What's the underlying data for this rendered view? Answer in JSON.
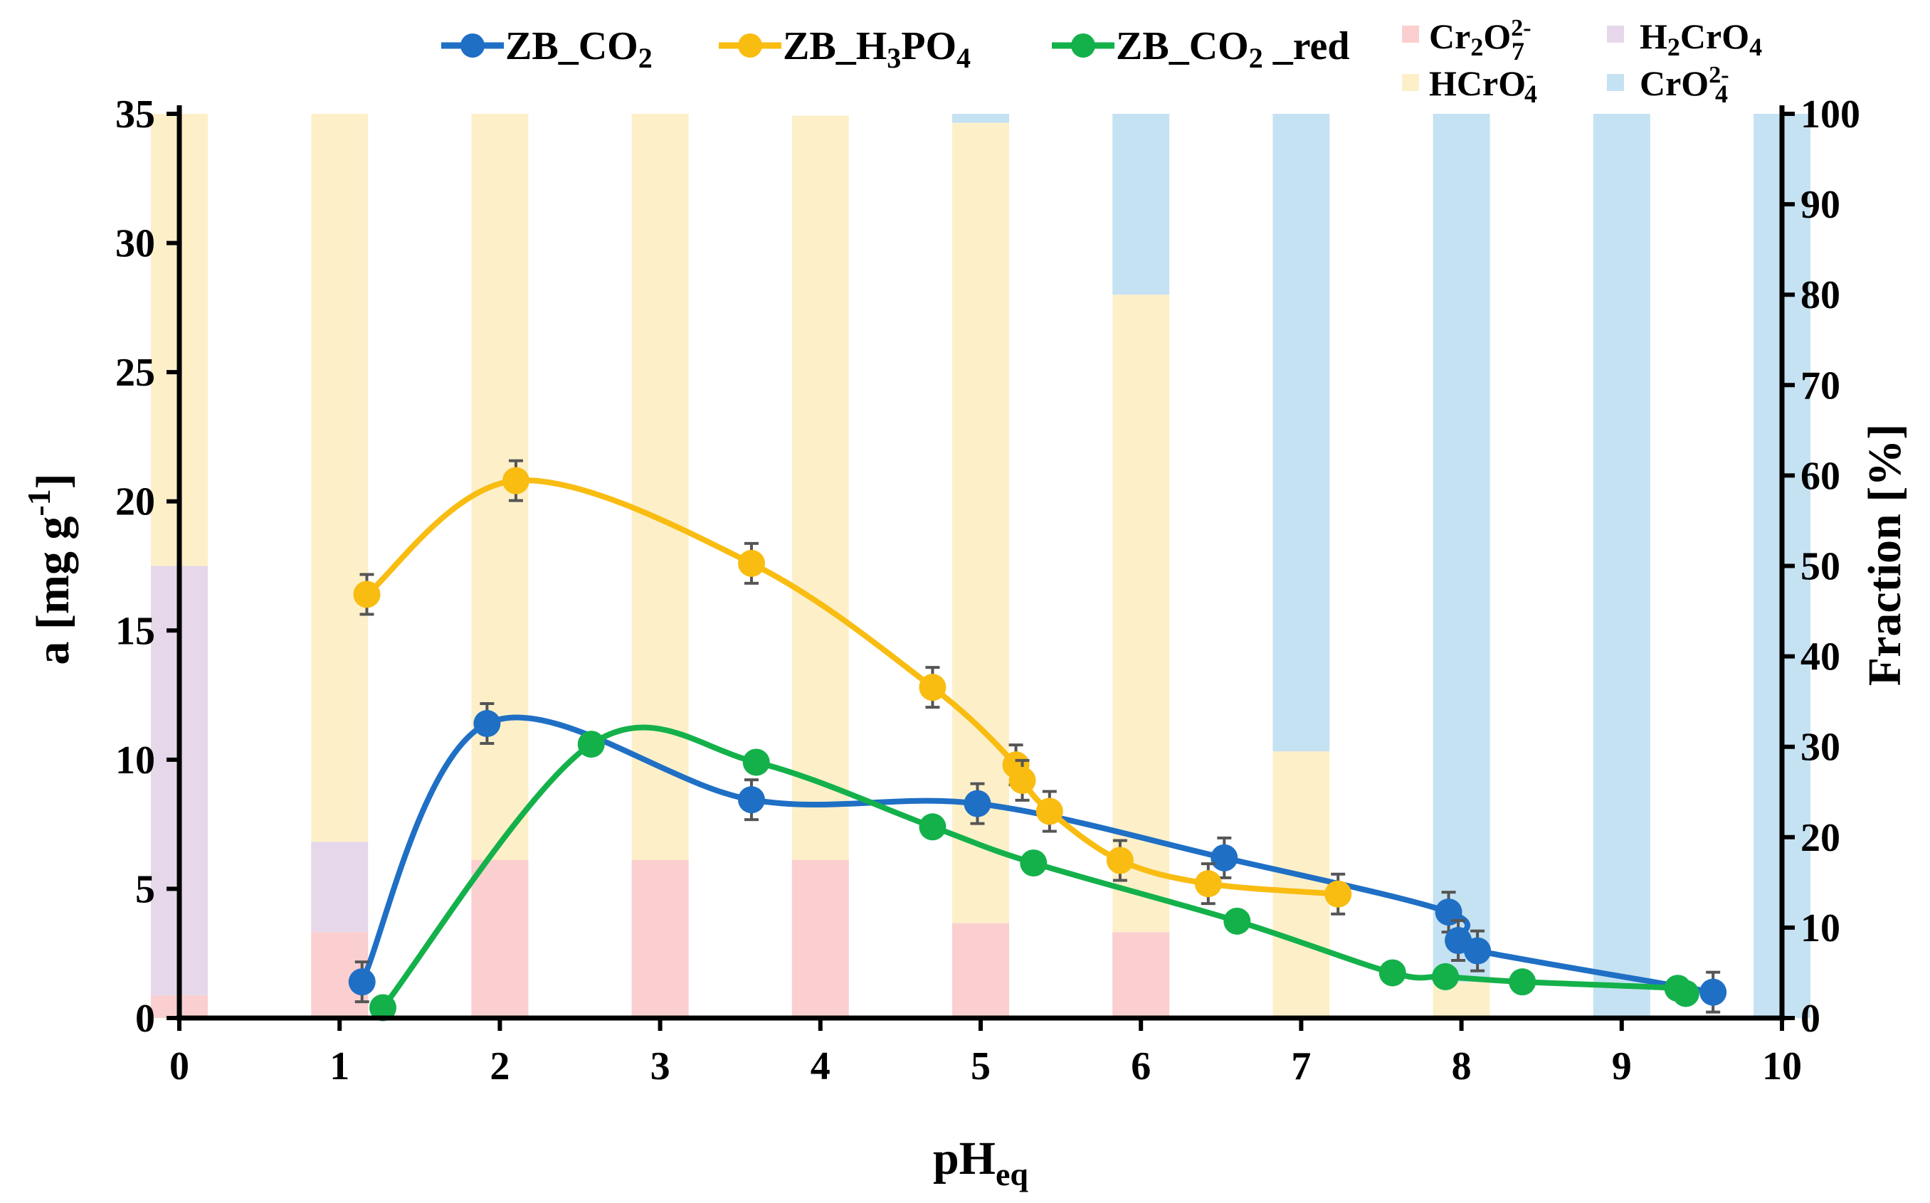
{
  "chart_data": {
    "type": "line",
    "title": "",
    "xlabel": "pH",
    "xlabel_sub": "eq",
    "ylabel_left": "a [mg g",
    "ylabel_left_sup": "-1",
    "ylabel_left_end": "]",
    "ylabel_right": "Fraction [%]",
    "xlim": [
      0,
      10
    ],
    "ylim_left": [
      0,
      35
    ],
    "ylim_right": [
      0,
      100
    ],
    "x_ticks": [
      "0",
      "1",
      "2",
      "3",
      "4",
      "5",
      "6",
      "7",
      "8",
      "9",
      "10"
    ],
    "y_left_ticks": [
      "0",
      "5",
      "10",
      "15",
      "20",
      "25",
      "30",
      "35"
    ],
    "y_right_ticks": [
      "0",
      "10",
      "20",
      "30",
      "40",
      "50",
      "60",
      "70",
      "80",
      "90",
      "100"
    ],
    "series": [
      {
        "name": "ZB_CO2",
        "label_main": "ZB_CO",
        "label_sub": "2",
        "color": "#1f6fc5",
        "x": [
          1.14,
          1.92,
          3.57,
          4.98,
          6.52,
          7.92,
          7.98,
          8.1,
          9.57
        ],
        "y": [
          1.4,
          11.4,
          8.45,
          8.3,
          6.2,
          4.1,
          3.0,
          2.6,
          1.0
        ],
        "errors": true
      },
      {
        "name": "ZB_H3PO4",
        "label_main": "ZB_H",
        "label_sub1": "3",
        "label_mid": "PO",
        "label_sub2": "4",
        "color": "#f9bc11",
        "x": [
          1.17,
          2.1,
          3.57,
          4.7,
          5.22,
          5.26,
          5.43,
          5.87,
          6.42,
          7.23
        ],
        "y": [
          16.4,
          20.8,
          17.6,
          12.8,
          9.8,
          9.2,
          8.0,
          6.1,
          5.2,
          4.8
        ],
        "errors": true
      },
      {
        "name": "ZB_CO2_red",
        "label_main": "ZB_CO",
        "label_sub": "2",
        "label_end": " _red",
        "color": "#14b14b",
        "x": [
          1.27,
          2.57,
          3.6,
          4.7,
          5.33,
          6.6,
          7.57,
          7.9,
          8.38,
          9.35,
          9.4
        ],
        "y": [
          0.4,
          10.6,
          9.9,
          7.4,
          6.0,
          3.75,
          1.75,
          1.6,
          1.4,
          1.15,
          0.95
        ],
        "errors": false
      }
    ],
    "species": [
      {
        "name": "Cr2O7 2-",
        "main1": "Cr",
        "sub1": "2",
        "main2": "O",
        "sub2": "7",
        "sup": "2-",
        "color": "#fbcfcf"
      },
      {
        "name": "H2CrO4",
        "main1": "H",
        "sub1": "2",
        "main2": "CrO",
        "sub2": "4",
        "sup": "",
        "color": "#e6d8ea"
      },
      {
        "name": "HCrO4 -",
        "main1": "HCrO",
        "sub1": "4",
        "main2": "",
        "sub2": "",
        "sup": "-",
        "color": "#fdf0c9"
      },
      {
        "name": "CrO4 2-",
        "main1": "CrO",
        "sub1": "4",
        "main2": "",
        "sub2": "",
        "sup": "2-",
        "color": "#c5e2f2"
      }
    ],
    "fraction_bars": [
      {
        "pH": 0,
        "Cr2O7": 2.5,
        "H2CrO4": 47.5,
        "HCrO4": 50,
        "CrO4": 0
      },
      {
        "pH": 1,
        "Cr2O7": 9.5,
        "H2CrO4": 10,
        "HCrO4": 80.5,
        "CrO4": 0
      },
      {
        "pH": 2,
        "Cr2O7": 17.5,
        "H2CrO4": 0,
        "HCrO4": 82.5,
        "CrO4": 0
      },
      {
        "pH": 3,
        "Cr2O7": 17.5,
        "H2CrO4": 0,
        "HCrO4": 82.5,
        "CrO4": 0
      },
      {
        "pH": 4,
        "Cr2O7": 17.5,
        "H2CrO4": 0,
        "HCrO4": 82.3,
        "CrO4": 0
      },
      {
        "pH": 5,
        "Cr2O7": 10.5,
        "H2CrO4": 0,
        "HCrO4": 88.5,
        "CrO4": 1
      },
      {
        "pH": 6,
        "Cr2O7": 9.5,
        "H2CrO4": 0,
        "HCrO4": 70.5,
        "CrO4": 20
      },
      {
        "pH": 7,
        "Cr2O7": 0,
        "H2CrO4": 0,
        "HCrO4": 29.5,
        "CrO4": 70.5
      },
      {
        "pH": 8,
        "Cr2O7": 0,
        "H2CrO4": 0,
        "HCrO4": 4,
        "CrO4": 96
      },
      {
        "pH": 9,
        "Cr2O7": 0,
        "H2CrO4": 0,
        "HCrO4": 0,
        "CrO4": 100
      },
      {
        "pH": 10,
        "Cr2O7": 0,
        "H2CrO4": 0,
        "HCrO4": 0,
        "CrO4": 100
      }
    ],
    "grid": false,
    "legend_position": "top"
  }
}
